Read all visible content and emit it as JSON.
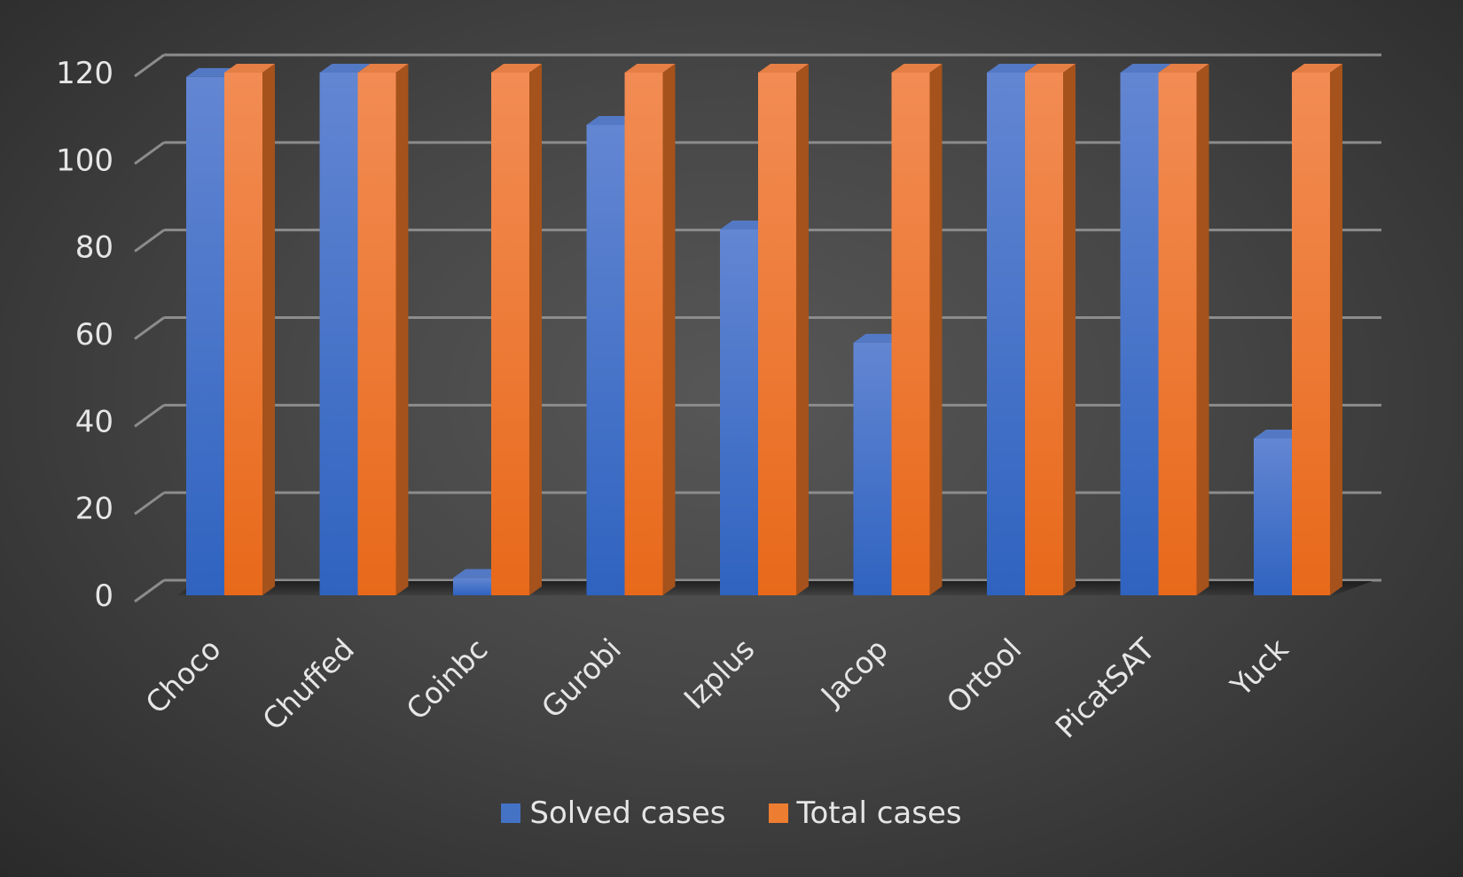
{
  "chart_data": {
    "type": "bar",
    "style": "3d-clustered-column",
    "categories": [
      "Choco",
      "Chuffed",
      "Coinbc",
      "Gurobi",
      "Izplus",
      "Jacop",
      "Ortool",
      "PicatSAT",
      "Yuck"
    ],
    "series": [
      {
        "name": "Solved cases",
        "color": "#4472c4",
        "values": [
          119,
          120,
          4,
          108,
          84,
          58,
          120,
          120,
          36
        ]
      },
      {
        "name": "Total cases",
        "color": "#ed7d31",
        "values": [
          120,
          120,
          120,
          120,
          120,
          120,
          120,
          120,
          120
        ]
      }
    ],
    "y_ticks": [
      "0",
      "20",
      "40",
      "60",
      "80",
      "100",
      "120"
    ],
    "ylim": [
      0,
      120
    ],
    "grid": true,
    "legend_position": "bottom",
    "title": "",
    "xlabel": "",
    "ylabel": ""
  }
}
